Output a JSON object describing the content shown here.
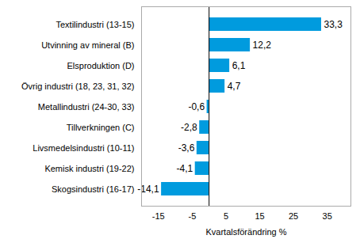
{
  "chart_data": {
    "type": "bar",
    "orientation": "horizontal",
    "categories": [
      "Textilindustri (13-15)",
      "Utvinning av mineral (B)",
      "Elsproduktion (D)",
      "Övrig industri (18, 23, 31, 32)",
      "Metallindustri (24-30, 33)",
      "Tillverkningen (C)",
      "Livsmedelsindustri (10-11)",
      "Kemisk industri (19-22)",
      "Skogsindustri (16-17)"
    ],
    "values": [
      33.3,
      12.2,
      6.1,
      4.7,
      -0.6,
      -2.8,
      -3.6,
      -4.1,
      -14.1
    ],
    "value_labels": [
      "33,3",
      "12,2",
      "6,1",
      "4,7",
      "-0,6",
      "-2,8",
      "-3,6",
      "-4,1",
      "-14,1"
    ],
    "data_labels": true,
    "color": "#009bde",
    "x_label": "Kvartalsförändring %",
    "xlim": [
      -20,
      42
    ],
    "xticks": [
      -15,
      -5,
      5,
      15,
      25,
      35
    ],
    "grid": false
  }
}
